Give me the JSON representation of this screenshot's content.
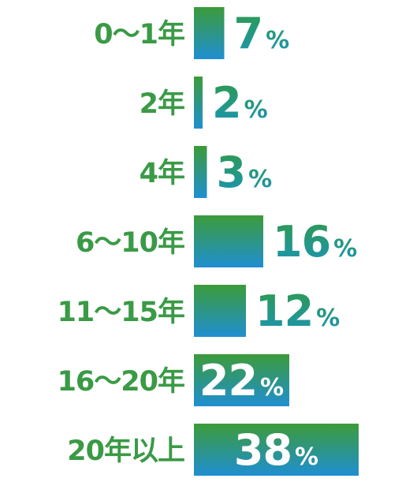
{
  "chart_data": {
    "type": "bar",
    "orientation": "horizontal",
    "categories": [
      "0〜1年",
      "2年",
      "4年",
      "6〜10年",
      "11〜15年",
      "16〜20年",
      "20年以上"
    ],
    "values": [
      7,
      2,
      3,
      16,
      12,
      22,
      38
    ],
    "unit": "%",
    "title": "",
    "xlabel": "",
    "ylabel": "",
    "xlim": [
      0,
      40
    ],
    "grid": false,
    "legend": "none",
    "value_label_inside_from": 22
  },
  "colors": {
    "label": "#3a9a45",
    "bar_top": "#3c9b3a",
    "bar_bottom": "#1f8fd2",
    "value_text": "#2a9a80",
    "value_text_inside": "#ffffff"
  }
}
